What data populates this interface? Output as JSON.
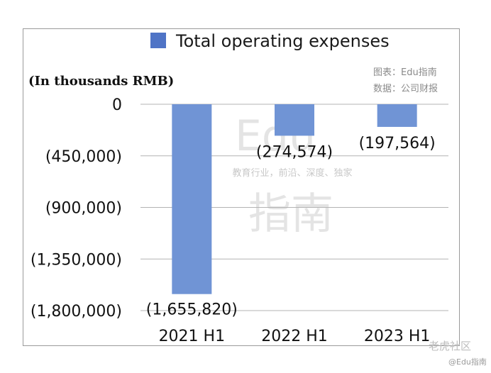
{
  "chart_data": {
    "type": "bar",
    "categories": [
      "2021 H1",
      "2022 H1",
      "2023 H1"
    ],
    "series": [
      {
        "name": "Total operating expenses",
        "values": [
          -1655820,
          -274574,
          -197564
        ]
      }
    ],
    "data_labels": [
      "(1,655,820)",
      "(274,574)",
      "(197,564)"
    ],
    "y_ticks": [
      0,
      -450000,
      -900000,
      -1350000,
      -1800000
    ],
    "y_tick_labels": [
      "0",
      "(450,000)",
      "(900,000)",
      "(1,350,000)",
      "(1,800,000)"
    ],
    "ylim": [
      -1800000,
      0
    ],
    "unit_label": "(In thousands RMB)",
    "grid": true,
    "legend_position": "top",
    "bar_color": "#7094d5",
    "legend_swatch_color": "#4f74c6"
  },
  "source": {
    "line1": "图表：Edu指南",
    "line2": "数据：公司财报"
  },
  "watermark": {
    "top": "Edu",
    "middle": "教育行业，前沿、深度、独家",
    "bottom": "指南"
  },
  "corner": {
    "line1": "老虎社区",
    "line2": "@Edu指南"
  }
}
